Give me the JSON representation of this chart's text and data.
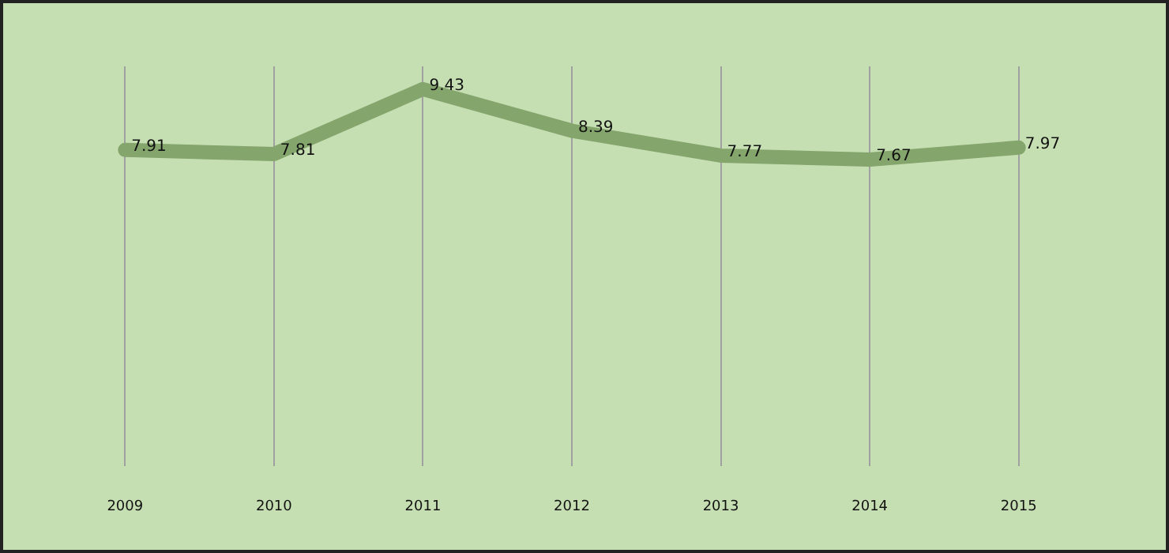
{
  "chart_data": {
    "type": "line",
    "categories": [
      "2009",
      "2010",
      "2011",
      "2012",
      "2013",
      "2014",
      "2015"
    ],
    "series": [
      {
        "color": "#84a56c",
        "values": [
          7.91,
          7.81,
          9.43,
          8.39,
          7.77,
          7.67,
          7.97
        ]
      }
    ],
    "data_labels": true,
    "grid": "x",
    "legend": false,
    "marker": "none",
    "tick_labels": "x"
  }
}
